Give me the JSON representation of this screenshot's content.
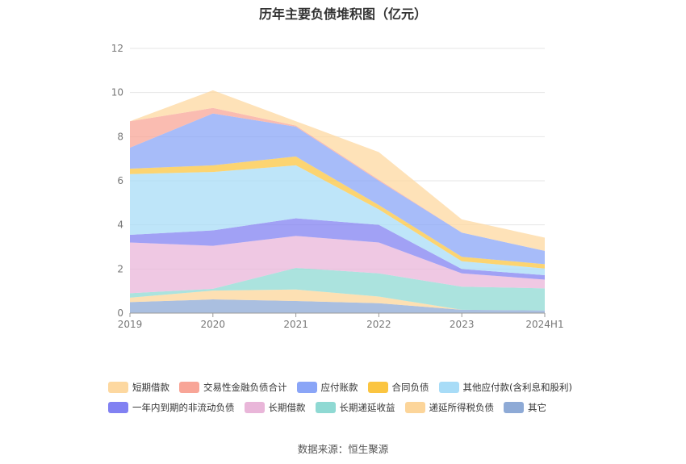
{
  "title": "历年主要负债堆积图（亿元）",
  "source": "数据来源：恒生聚源",
  "chart_data": {
    "type": "area",
    "stacked": true,
    "title": "历年主要负债堆积图（亿元）",
    "x": [
      "2019",
      "2020",
      "2021",
      "2022",
      "2023",
      "2024H1"
    ],
    "ylim": [
      0,
      12
    ],
    "yticks": [
      0,
      2,
      4,
      6,
      8,
      10,
      12
    ],
    "grid": true,
    "legend_position": "bottom",
    "series": [
      {
        "name": "其它",
        "color": "#8eaad6",
        "values": [
          0.5,
          0.62,
          0.55,
          0.45,
          0.15,
          0.12
        ]
      },
      {
        "name": "递延所得税负债",
        "color": "#fcd59a",
        "values": [
          0.2,
          0.4,
          0.52,
          0.3,
          0.0,
          0.0
        ]
      },
      {
        "name": "长期递延收益",
        "color": "#8fd9d3",
        "values": [
          0.2,
          0.08,
          0.98,
          1.05,
          1.05,
          1.0
        ]
      },
      {
        "name": "长期借款",
        "color": "#e9b6d9",
        "values": [
          2.3,
          1.95,
          1.45,
          1.4,
          0.6,
          0.4
        ]
      },
      {
        "name": "一年内到期的非流动负债",
        "color": "#8181f2",
        "values": [
          0.35,
          0.7,
          0.8,
          0.8,
          0.2,
          0.2
        ]
      },
      {
        "name": "其他应付款(含利息和股利)",
        "color": "#a8dcf7",
        "values": [
          2.75,
          2.65,
          2.4,
          0.7,
          0.35,
          0.3
        ]
      },
      {
        "name": "合同负债",
        "color": "#fbc541",
        "values": [
          0.25,
          0.3,
          0.4,
          0.2,
          0.2,
          0.2
        ]
      },
      {
        "name": "应付账款",
        "color": "#8aa5f7",
        "values": [
          0.95,
          2.35,
          1.35,
          1.1,
          1.1,
          0.6
        ]
      },
      {
        "name": "交易性金融负债合计",
        "color": "#f8a597",
        "values": [
          1.2,
          0.25,
          0.05,
          0.05,
          0.0,
          0.0
        ]
      },
      {
        "name": "短期借款",
        "color": "#fdd8a0",
        "values": [
          0.0,
          0.8,
          0.2,
          1.25,
          0.6,
          0.6
        ]
      }
    ]
  },
  "legend": {
    "row1": [
      {
        "label": "短期借款",
        "color": "#fdd8a0"
      },
      {
        "label": "交易性金融负债合计",
        "color": "#f8a597"
      },
      {
        "label": "应付账款",
        "color": "#8aa5f7"
      },
      {
        "label": "合同负债",
        "color": "#fbc541"
      },
      {
        "label": "其他应付款(含利息和股利)",
        "color": "#a8dcf7"
      }
    ],
    "row2": [
      {
        "label": "一年内到期的非流动负债",
        "color": "#8181f2"
      },
      {
        "label": "长期借款",
        "color": "#e9b6d9"
      },
      {
        "label": "长期递延收益",
        "color": "#8fd9d3"
      },
      {
        "label": "递延所得税负债",
        "color": "#fcd59a"
      },
      {
        "label": "其它",
        "color": "#8eaad6"
      }
    ]
  }
}
